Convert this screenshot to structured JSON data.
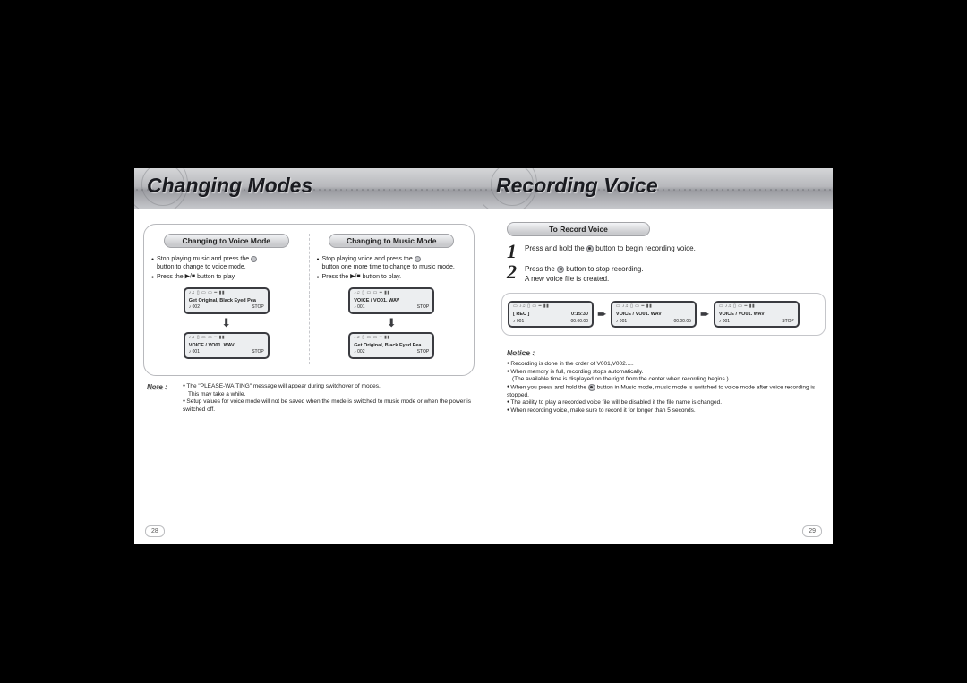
{
  "left": {
    "title": "Changing Modes",
    "page_num": "28",
    "col1": {
      "pill": "Changing to Voice Mode",
      "b1": "Stop playing music and press the",
      "b1b": "button to change to voice mode.",
      "b2a": "Press the",
      "b2b": "button to play.",
      "lcd1_l1": "Get Original, Black Eyed Pea",
      "lcd1_n": "♪ 002",
      "lcd1_s": "STOP",
      "lcd2_l1": "VOICE / VO01. WAV",
      "lcd2_n": "♪ 001",
      "lcd2_s": "STOP"
    },
    "col2": {
      "pill": "Changing to Music Mode",
      "b1": "Stop playing voice and press the",
      "b1b": "button one more time to change to music mode.",
      "b2a": "Press the",
      "b2b": "button to play.",
      "lcd1_l1": "VOICE / VO01. WAV",
      "lcd1_n": "♪ 001",
      "lcd1_s": "STOP",
      "lcd2_l1": "Get Original, Black Eyed Pea",
      "lcd2_n": "♪ 002",
      "lcd2_s": "STOP"
    },
    "note_label": "Note :",
    "note1": "The \"PLEASE-WAITING\" message will appear during switchover of modes.",
    "note1b": "This may take a while.",
    "note2": "Setup values for voice mode will not be saved when the mode is switched to music mode or when the power is switched off."
  },
  "right": {
    "title": "Recording Voice",
    "page_num": "29",
    "sub_pill": "To Record Voice",
    "step1a": "Press and hold the",
    "step1b": "button to begin recording voice.",
    "step2a": "Press the",
    "step2b": "button to stop recording.",
    "step2c": "A new voice file is created.",
    "lcd1_top": "[ REC ]",
    "lcd1_time": "0:15:30",
    "lcd1_n": "001",
    "lcd1_dur": "00:00:00",
    "lcd2_l1": "VOICE / VO01. WAV",
    "lcd2_n": "001",
    "lcd2_dur": "00:00:05",
    "lcd3_l1": "VOICE / VO01. WAV",
    "lcd3_n": "♪ 001",
    "lcd3_s": "STOP",
    "notice_label": "Notice :",
    "n1": "Recording is done in the order of V001,V002.....",
    "n2": "When memory is full, recording stops automatically.",
    "n2b": "(The available time is displayed on the right from the center when recording begins.)",
    "n3a": "When you press and hold the",
    "n3b": "button in Music mode, music mode is switched to voice mode after voice recording is stopped.",
    "n4": "The ability to play a recorded voice file will be disabled if the file name is changed.",
    "n5": "When recording voice, make sure to record it for longer than 5 seconds."
  }
}
